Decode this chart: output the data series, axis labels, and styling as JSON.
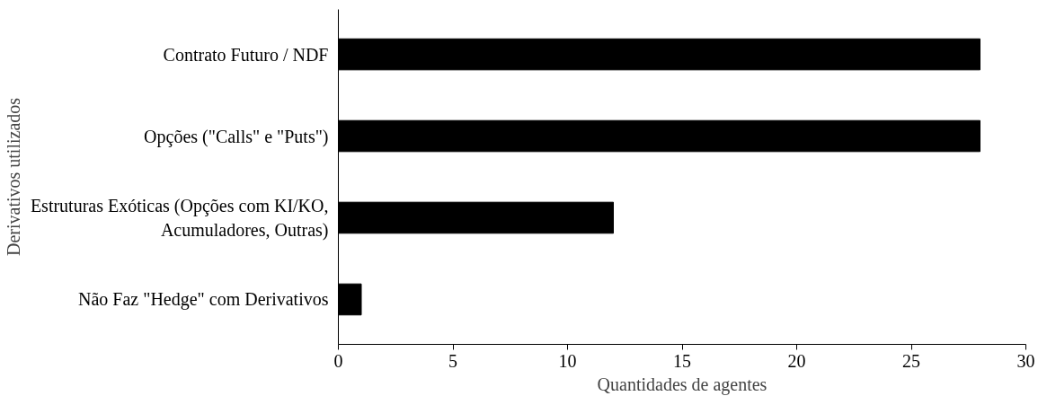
{
  "chart_data": {
    "type": "bar",
    "orientation": "horizontal",
    "xlabel": "Quantidades de agentes",
    "ylabel": "Derivativos utilizados",
    "categories": [
      "Contrato Futuro / NDF",
      "Opções (\"Calls\" e \"Puts\")",
      "Estruturas Exóticas (Opções com KI/KO,\nAcumuladores, Outras)",
      "Não Faz \"Hedge\" com Derivativos"
    ],
    "values": [
      28,
      28,
      12,
      1
    ],
    "color": "#000000",
    "xlim": [
      0,
      30
    ],
    "xticks": [
      0,
      5,
      10,
      15,
      20,
      25,
      30
    ],
    "grid": false
  }
}
